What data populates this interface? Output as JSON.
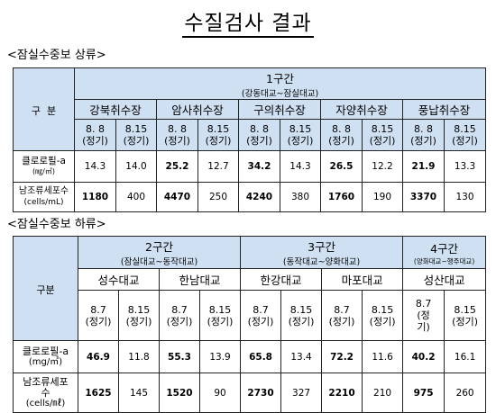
{
  "title": "수질검사 결과",
  "upper": {
    "section_title": "<잠실수중보 상류>",
    "category_label": "구  분",
    "zone": {
      "name": "1구간",
      "range": "(강동대교~잠실대교)"
    },
    "stations": [
      "강북취수장",
      "암사취수장",
      "구의취수장",
      "자양취수장",
      "풍납취수장"
    ],
    "dates": [
      "8. 8",
      "8.15",
      "8. 8",
      "8.15",
      "8. 8",
      "8.15",
      "8. 8",
      "8.15",
      "8. 8",
      "8.15"
    ],
    "date_note": "(정기)",
    "rows": [
      {
        "label": "클로로필-a",
        "unit": "(㎎/㎥)",
        "values": [
          "14.3",
          "14.0",
          "25.2",
          "12.7",
          "34.2",
          "14.3",
          "26.5",
          "12.2",
          "21.9",
          "13.3"
        ]
      },
      {
        "label": "남조류세포수",
        "unit": "(cells/mL)",
        "values": [
          "1180",
          "400",
          "4470",
          "250",
          "4240",
          "380",
          "1760",
          "190",
          "3370",
          "130"
        ]
      }
    ]
  },
  "lower": {
    "section_title": "<잠실수중보 하류>",
    "category_label": "구분",
    "zones": [
      {
        "name": "2구간",
        "range": "(잠실대교~동작대교)"
      },
      {
        "name": "3구간",
        "range": "(동작대교~양화대교)"
      },
      {
        "name": "4구간",
        "range": "(양화대교~행주대교)"
      }
    ],
    "stations": [
      "성수대교",
      "한남대교",
      "한강대교",
      "마포대교",
      "성산대교"
    ],
    "dates": [
      "8.7",
      "8.15",
      "8.7",
      "8.15",
      "8.7",
      "8.15",
      "8.7",
      "8.15",
      "8.7",
      "8.15"
    ],
    "date_note": "(정기)",
    "last_note": [
      "(정",
      "기)"
    ],
    "rows": [
      {
        "label": "클로로필-a",
        "unit": "(mg/㎥)",
        "values": [
          "46.9",
          "11.8",
          "55.3",
          "13.9",
          "65.8",
          "13.4",
          "72.2",
          "11.6",
          "40.2",
          "16.1"
        ]
      },
      {
        "label": "남조류세포",
        "label2": "수",
        "unit": "(cells/㎖)",
        "values": [
          "1625",
          "145",
          "1520",
          "90",
          "2730",
          "327",
          "2210",
          "210",
          "975",
          "260"
        ]
      }
    ]
  }
}
